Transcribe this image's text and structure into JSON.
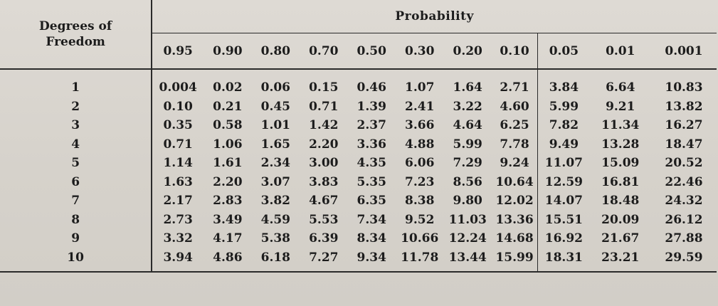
{
  "table": {
    "df_header_line1": "Degrees of",
    "df_header_line2": "Freedom",
    "prob_header": "Probability",
    "columns": [
      "0.95",
      "0.90",
      "0.80",
      "0.70",
      "0.50",
      "0.30",
      "0.20",
      "0.10",
      "0.05",
      "0.01",
      "0.001"
    ],
    "rows": [
      {
        "df": "1",
        "values": [
          "0.004",
          "0.02",
          "0.06",
          "0.15",
          "0.46",
          "1.07",
          "1.64",
          "2.71",
          "3.84",
          "6.64",
          "10.83"
        ]
      },
      {
        "df": "2",
        "values": [
          "0.10",
          "0.21",
          "0.45",
          "0.71",
          "1.39",
          "2.41",
          "3.22",
          "4.60",
          "5.99",
          "9.21",
          "13.82"
        ]
      },
      {
        "df": "3",
        "values": [
          "0.35",
          "0.58",
          "1.01",
          "1.42",
          "2.37",
          "3.66",
          "4.64",
          "6.25",
          "7.82",
          "11.34",
          "16.27"
        ]
      },
      {
        "df": "4",
        "values": [
          "0.71",
          "1.06",
          "1.65",
          "2.20",
          "3.36",
          "4.88",
          "5.99",
          "7.78",
          "9.49",
          "13.28",
          "18.47"
        ]
      },
      {
        "df": "5",
        "values": [
          "1.14",
          "1.61",
          "2.34",
          "3.00",
          "4.35",
          "6.06",
          "7.29",
          "9.24",
          "11.07",
          "15.09",
          "20.52"
        ]
      },
      {
        "df": "6",
        "values": [
          "1.63",
          "2.20",
          "3.07",
          "3.83",
          "5.35",
          "7.23",
          "8.56",
          "10.64",
          "12.59",
          "16.81",
          "22.46"
        ]
      },
      {
        "df": "7",
        "values": [
          "2.17",
          "2.83",
          "3.82",
          "4.67",
          "6.35",
          "8.38",
          "9.80",
          "12.02",
          "14.07",
          "18.48",
          "24.32"
        ]
      },
      {
        "df": "8",
        "values": [
          "2.73",
          "3.49",
          "4.59",
          "5.53",
          "7.34",
          "9.52",
          "11.03",
          "13.36",
          "15.51",
          "20.09",
          "26.12"
        ]
      },
      {
        "df": "9",
        "values": [
          "3.32",
          "4.17",
          "5.38",
          "6.39",
          "8.34",
          "10.66",
          "12.24",
          "14.68",
          "16.92",
          "21.67",
          "27.88"
        ]
      },
      {
        "df": "10",
        "values": [
          "3.94",
          "4.86",
          "6.18",
          "7.27",
          "9.34",
          "11.78",
          "13.44",
          "15.99",
          "18.31",
          "23.21",
          "29.59"
        ]
      }
    ]
  },
  "colors": {
    "paper": "#d9d5cf",
    "ink": "#1c1c1c",
    "rule": "#2a2a2a"
  }
}
